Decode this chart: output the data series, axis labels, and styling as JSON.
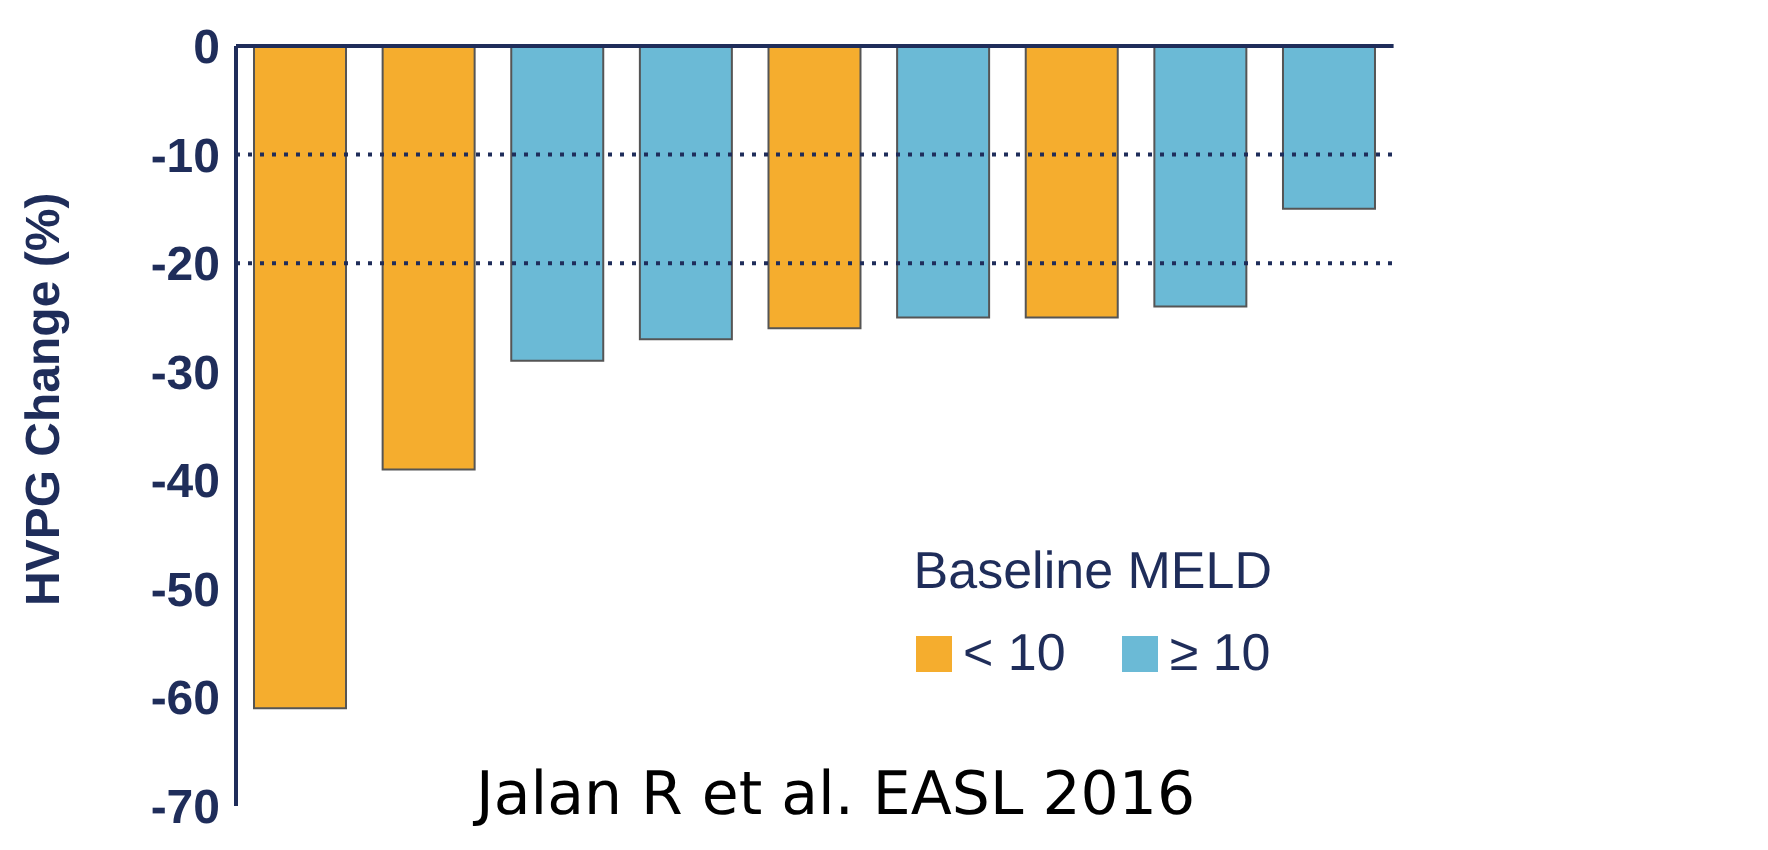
{
  "chart_data": {
    "type": "bar",
    "ylabel": "HVPG Change (%)",
    "legend_title": "Baseline MELD",
    "categories": [
      null,
      null,
      null,
      null,
      null,
      null,
      null,
      null,
      null
    ],
    "stacked": true,
    "series": [
      {
        "name": "< 10",
        "color": "#f5ad2e",
        "values": [
          -61,
          -39,
          null,
          null,
          -26,
          null,
          -25,
          null,
          null
        ]
      },
      {
        "name": "≥ 10",
        "color": "#6bbad6",
        "values": [
          null,
          null,
          -29,
          -27,
          null,
          -25,
          null,
          -24,
          -15
        ]
      }
    ],
    "ylim": [
      -70,
      0
    ],
    "yticks": [
      0,
      -10,
      -20,
      -30,
      -40,
      -50,
      -60,
      -70
    ],
    "legend": "bottom right",
    "ref_lines": [
      {
        "axis": "y",
        "value": -10,
        "color": "#1f2d5a",
        "line_style": "dotted"
      },
      {
        "axis": "y",
        "value": -20,
        "color": "#1f2d5a",
        "line_style": "dotted"
      }
    ],
    "annotations": [
      "Jalan R et al. EASL 2016"
    ]
  }
}
